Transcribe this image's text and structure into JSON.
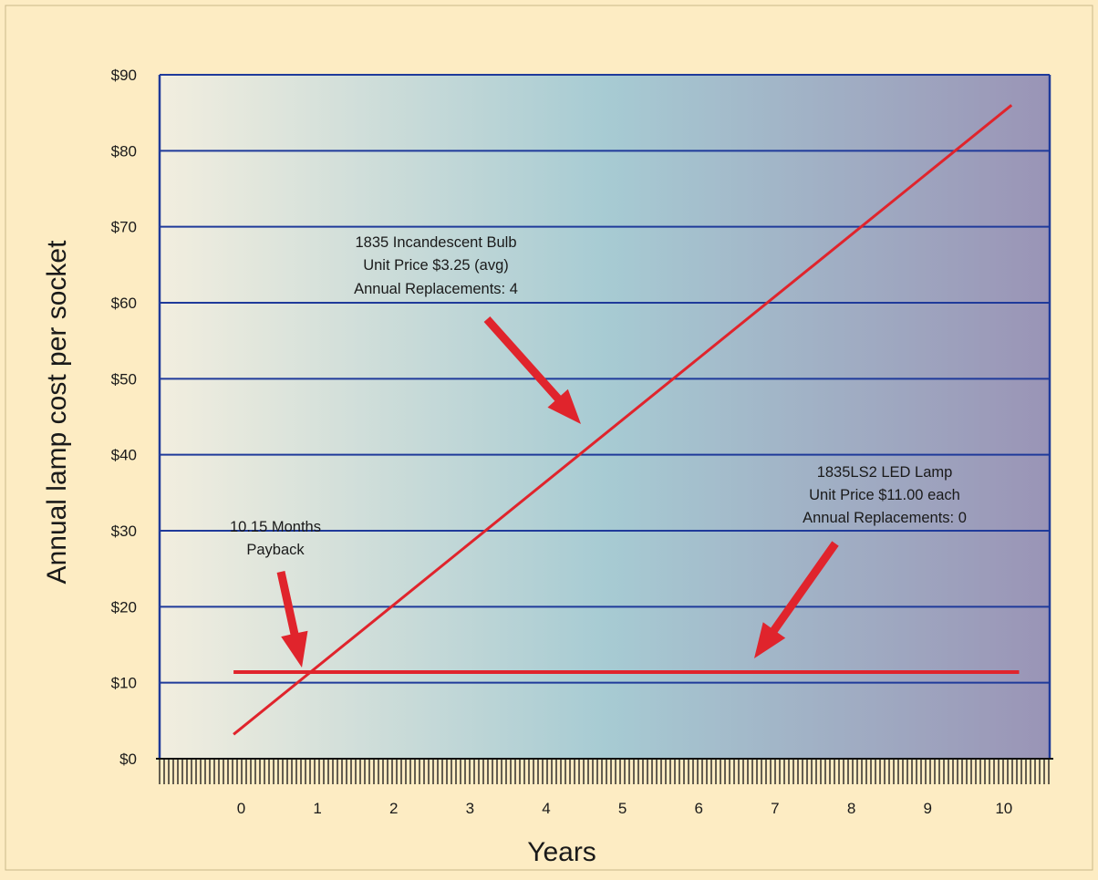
{
  "chart_data": {
    "type": "line",
    "xlabel": "Years",
    "ylabel": "Annual lamp cost per socket",
    "x_ticks": [
      "0",
      "1",
      "2",
      "3",
      "4",
      "5",
      "6",
      "7",
      "8",
      "9",
      "10"
    ],
    "y_ticks": [
      "$0",
      "$10",
      "$20",
      "$30",
      "$40",
      "$50",
      "$60",
      "$70",
      "$80",
      "$90"
    ],
    "xlim": [
      -1.07,
      10.6
    ],
    "ylim": [
      0,
      90
    ],
    "grid": true,
    "series": [
      {
        "key": "incandescent",
        "color": "#e0242c",
        "x": [
          -0.1,
          10.1
        ],
        "y": [
          3.2,
          86
        ]
      },
      {
        "key": "led",
        "color": "#e0242c",
        "x": [
          -0.1,
          10.2
        ],
        "y": [
          11.4,
          11.4
        ]
      }
    ],
    "annotations": [
      {
        "key": "incandescent-label",
        "lines": [
          "1835 Incandescent Bulb",
          "Unit Price $3.25 (avg)",
          "Annual Replacements: 4"
        ]
      },
      {
        "key": "led-label",
        "lines": [
          "1835LS2 LED Lamp",
          "Unit Price $11.00 each",
          "Annual Replacements: 0"
        ]
      },
      {
        "key": "payback-label",
        "lines": [
          "10.15 Months",
          "Payback"
        ]
      }
    ]
  },
  "colors": {
    "background": "#fdecc3",
    "gradient_left": "#f2eedf",
    "gradient_mid": "#a7cbd3",
    "gradient_right": "#9a94b6",
    "grid": "#1f3a9a",
    "axis": "#111111",
    "lines": "#e0242c"
  }
}
